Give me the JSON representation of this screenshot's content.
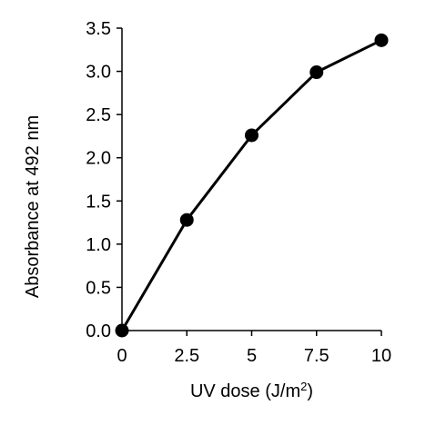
{
  "chart_data": {
    "type": "line",
    "x": [
      0,
      2.5,
      5,
      7.5,
      10
    ],
    "series": [
      {
        "values": [
          0.0,
          1.28,
          2.26,
          2.99,
          3.36
        ]
      }
    ],
    "xlabel": "UV dose (J/m",
    "xlabel_superscript": "2",
    "xlabel_suffix": ")",
    "ylabel": "Absorbance at 492 nm",
    "xlim": [
      0,
      10
    ],
    "ylim": [
      0,
      3.5
    ],
    "x_ticks": [
      "0",
      "2.5",
      "5",
      "7.5",
      "10"
    ],
    "y_ticks": [
      "0.0",
      "0.5",
      "1.0",
      "1.5",
      "2.0",
      "2.5",
      "3.0",
      "3.5"
    ],
    "grid": false,
    "colors": {
      "line": "#000000",
      "marker": "#000000",
      "axis": "#000000"
    }
  }
}
